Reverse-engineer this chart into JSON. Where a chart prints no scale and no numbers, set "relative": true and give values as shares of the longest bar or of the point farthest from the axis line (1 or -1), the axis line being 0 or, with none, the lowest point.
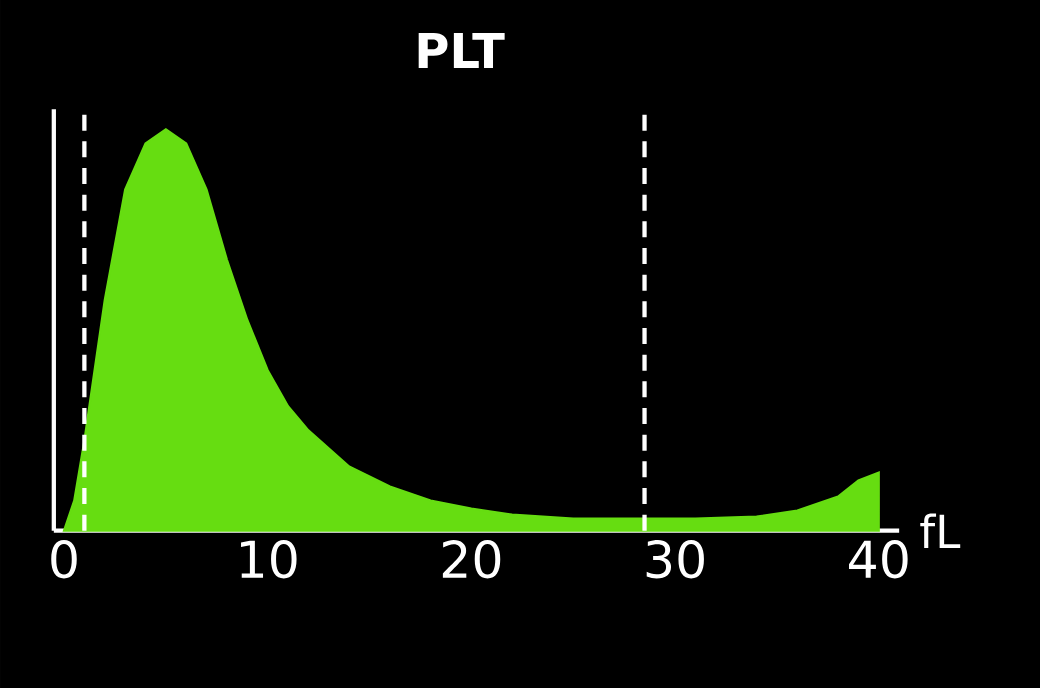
{
  "chart_data": {
    "type": "area",
    "title": "PLT",
    "xlabel": "fL",
    "relative": true,
    "color": "#66dd11",
    "x": [
      0,
      0.5,
      1,
      2,
      3,
      4,
      5,
      6,
      7,
      8,
      9,
      10,
      11,
      12,
      14,
      16,
      18,
      20,
      22,
      25,
      28,
      31,
      34,
      36,
      38,
      39,
      40
    ],
    "values": [
      0,
      0.075,
      0.225,
      0.575,
      0.85,
      0.965,
      1.0,
      0.965,
      0.85,
      0.675,
      0.525,
      0.4,
      0.31,
      0.25,
      0.16,
      0.11,
      0.075,
      0.055,
      0.04,
      0.03,
      0.03,
      0.03,
      0.035,
      0.05,
      0.085,
      0.125,
      0.145
    ],
    "xlim": [
      -0.5,
      41
    ],
    "xticks": [
      0,
      10,
      20,
      30,
      40
    ],
    "ref_lines": [
      {
        "axis": "x",
        "value": 1,
        "color": "#ffffff",
        "line_style": "dashed"
      },
      {
        "axis": "x",
        "value": 28.5,
        "color": "#ffffff",
        "line_style": "dashed"
      }
    ]
  }
}
